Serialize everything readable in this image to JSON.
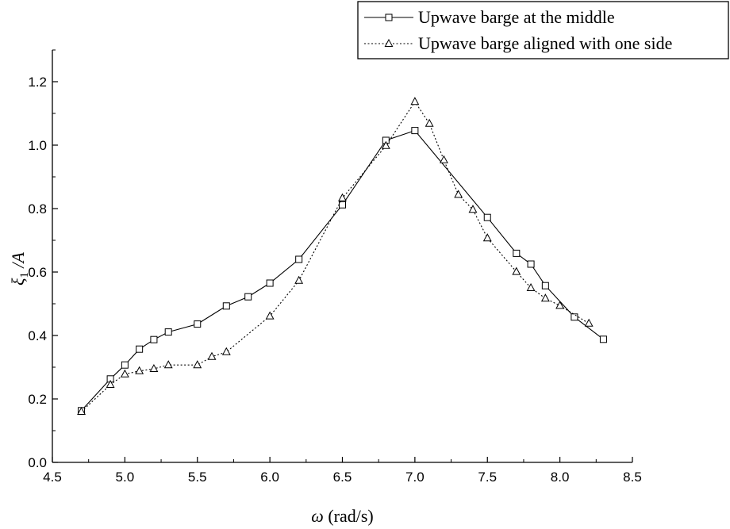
{
  "chart_data": {
    "type": "line",
    "xlabel": "(rad/s)",
    "xlabel_symbol": "ω",
    "ylabel_symbol": "ξ",
    "ylabel_subscript": "1",
    "ylabel_suffix": "/A",
    "xlim": [
      4.5,
      8.5
    ],
    "ylim": [
      0.0,
      1.3
    ],
    "xticks": [
      4.5,
      5.0,
      5.5,
      6.0,
      6.5,
      7.0,
      7.5,
      8.0,
      8.5
    ],
    "xtick_labels": [
      "4.5",
      "5.0",
      "5.5",
      "6.0",
      "6.5",
      "7.0",
      "7.5",
      "8.0",
      "8.5"
    ],
    "yticks": [
      0.0,
      0.2,
      0.4,
      0.6,
      0.8,
      1.0,
      1.2
    ],
    "ytick_labels": [
      "0.0",
      "0.2",
      "0.4",
      "0.6",
      "0.8",
      "1.0",
      "1.2"
    ],
    "grid": false,
    "legend_position": "top-right",
    "series": [
      {
        "name": "Upwave barge at the middle",
        "marker": "square",
        "line_style": "solid",
        "color": "#000000",
        "x": [
          4.7,
          4.9,
          5.0,
          5.1,
          5.2,
          5.3,
          5.5,
          5.7,
          5.85,
          6.0,
          6.2,
          6.5,
          6.8,
          7.0,
          7.5,
          7.7,
          7.8,
          7.9,
          8.1,
          8.3
        ],
        "y": [
          0.163,
          0.263,
          0.307,
          0.357,
          0.387,
          0.411,
          0.436,
          0.493,
          0.522,
          0.565,
          0.64,
          0.812,
          1.015,
          1.046,
          0.772,
          0.659,
          0.625,
          0.557,
          0.458,
          0.388
        ]
      },
      {
        "name": "Upwave barge aligned with one side",
        "marker": "triangle",
        "line_style": "dotted",
        "color": "#000000",
        "x": [
          4.7,
          4.9,
          5.0,
          5.1,
          5.2,
          5.3,
          5.5,
          5.6,
          5.7,
          6.0,
          6.2,
          6.5,
          6.8,
          7.0,
          7.1,
          7.2,
          7.3,
          7.4,
          7.5,
          7.7,
          7.8,
          7.9,
          8.0,
          8.2
        ],
        "y": [
          0.16,
          0.245,
          0.278,
          0.288,
          0.295,
          0.307,
          0.307,
          0.333,
          0.348,
          0.461,
          0.573,
          0.833,
          0.998,
          1.137,
          1.068,
          0.953,
          0.844,
          0.797,
          0.707,
          0.601,
          0.55,
          0.517,
          0.494,
          0.438
        ]
      }
    ]
  }
}
